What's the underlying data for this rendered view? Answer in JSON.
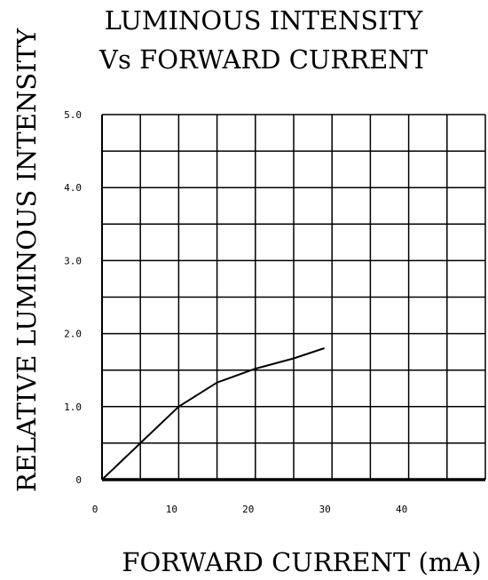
{
  "chart_data": {
    "type": "line",
    "title_line1": "LUMINOUS INTENSITY",
    "title_line2": "Vs FORWARD CURRENT",
    "xlabel": "FORWARD CURRENT (mA)",
    "ylabel": "RELATIVE LUMINOUS INTENSITY",
    "xlim": [
      0,
      50
    ],
    "ylim": [
      0,
      5
    ],
    "x_ticks": [
      "0",
      "10",
      "20",
      "30",
      "40"
    ],
    "y_ticks": [
      "0",
      "1.0",
      "2.0",
      "3.0",
      "4.0",
      "5.0"
    ],
    "grid": true,
    "series": [
      {
        "x": [
          0,
          5,
          10,
          15,
          20,
          25,
          29
        ],
        "y": [
          0,
          0.5,
          1.0,
          1.33,
          1.52,
          1.66,
          1.8
        ]
      }
    ]
  }
}
